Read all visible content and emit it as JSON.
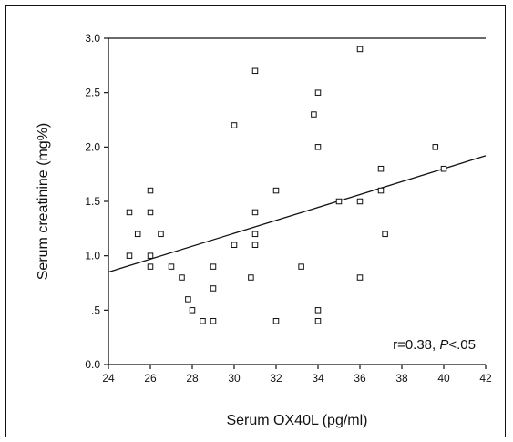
{
  "chart_data": {
    "type": "scatter",
    "title": "",
    "xlabel": "Serum OX40L (pg/ml)",
    "ylabel": "Serum creatinine (mg%)",
    "xlim": [
      24,
      42
    ],
    "ylim": [
      0,
      3.0
    ],
    "x_ticks": [
      24,
      26,
      28,
      30,
      32,
      34,
      36,
      38,
      40,
      42
    ],
    "y_ticks": [
      0,
      0.5,
      1.0,
      1.5,
      2.0,
      2.5,
      3.0
    ],
    "x_tick_labels": [
      "24",
      "26",
      "28",
      "30",
      "32",
      "34",
      "36",
      "38",
      "40",
      "42"
    ],
    "y_tick_labels": [
      "0.0",
      ".5",
      "1.0",
      "1.5",
      "2.0",
      "2.5",
      "3.0"
    ],
    "grid": false,
    "points": [
      {
        "x": 25.0,
        "y": 1.4
      },
      {
        "x": 25.0,
        "y": 1.0
      },
      {
        "x": 25.4,
        "y": 1.2
      },
      {
        "x": 26.0,
        "y": 1.6
      },
      {
        "x": 26.0,
        "y": 1.4
      },
      {
        "x": 26.0,
        "y": 1.0
      },
      {
        "x": 26.0,
        "y": 0.9
      },
      {
        "x": 26.5,
        "y": 1.2
      },
      {
        "x": 27.0,
        "y": 0.9
      },
      {
        "x": 27.5,
        "y": 0.8
      },
      {
        "x": 27.8,
        "y": 0.6
      },
      {
        "x": 28.0,
        "y": 0.5
      },
      {
        "x": 28.5,
        "y": 0.4
      },
      {
        "x": 29.0,
        "y": 0.4
      },
      {
        "x": 29.0,
        "y": 0.7
      },
      {
        "x": 29.0,
        "y": 0.9
      },
      {
        "x": 30.0,
        "y": 2.2
      },
      {
        "x": 30.0,
        "y": 1.1
      },
      {
        "x": 30.8,
        "y": 0.8
      },
      {
        "x": 31.0,
        "y": 2.7
      },
      {
        "x": 31.0,
        "y": 1.4
      },
      {
        "x": 31.0,
        "y": 1.2
      },
      {
        "x": 31.0,
        "y": 1.1
      },
      {
        "x": 32.0,
        "y": 1.6
      },
      {
        "x": 32.0,
        "y": 0.4
      },
      {
        "x": 33.2,
        "y": 0.9
      },
      {
        "x": 33.8,
        "y": 2.3
      },
      {
        "x": 34.0,
        "y": 2.5
      },
      {
        "x": 34.0,
        "y": 2.0
      },
      {
        "x": 34.0,
        "y": 0.5
      },
      {
        "x": 34.0,
        "y": 0.4
      },
      {
        "x": 35.0,
        "y": 1.5
      },
      {
        "x": 36.0,
        "y": 2.9
      },
      {
        "x": 36.0,
        "y": 1.5
      },
      {
        "x": 36.0,
        "y": 0.8
      },
      {
        "x": 37.0,
        "y": 1.8
      },
      {
        "x": 37.0,
        "y": 1.6
      },
      {
        "x": 37.2,
        "y": 1.2
      },
      {
        "x": 39.6,
        "y": 2.0
      },
      {
        "x": 40.0,
        "y": 1.8
      }
    ],
    "regression_line": {
      "x": [
        24,
        42
      ],
      "y": [
        0.85,
        1.92
      ]
    },
    "annotation": {
      "prefix": "r=0.38, ",
      "italic": "P",
      "suffix": "<.05"
    }
  }
}
